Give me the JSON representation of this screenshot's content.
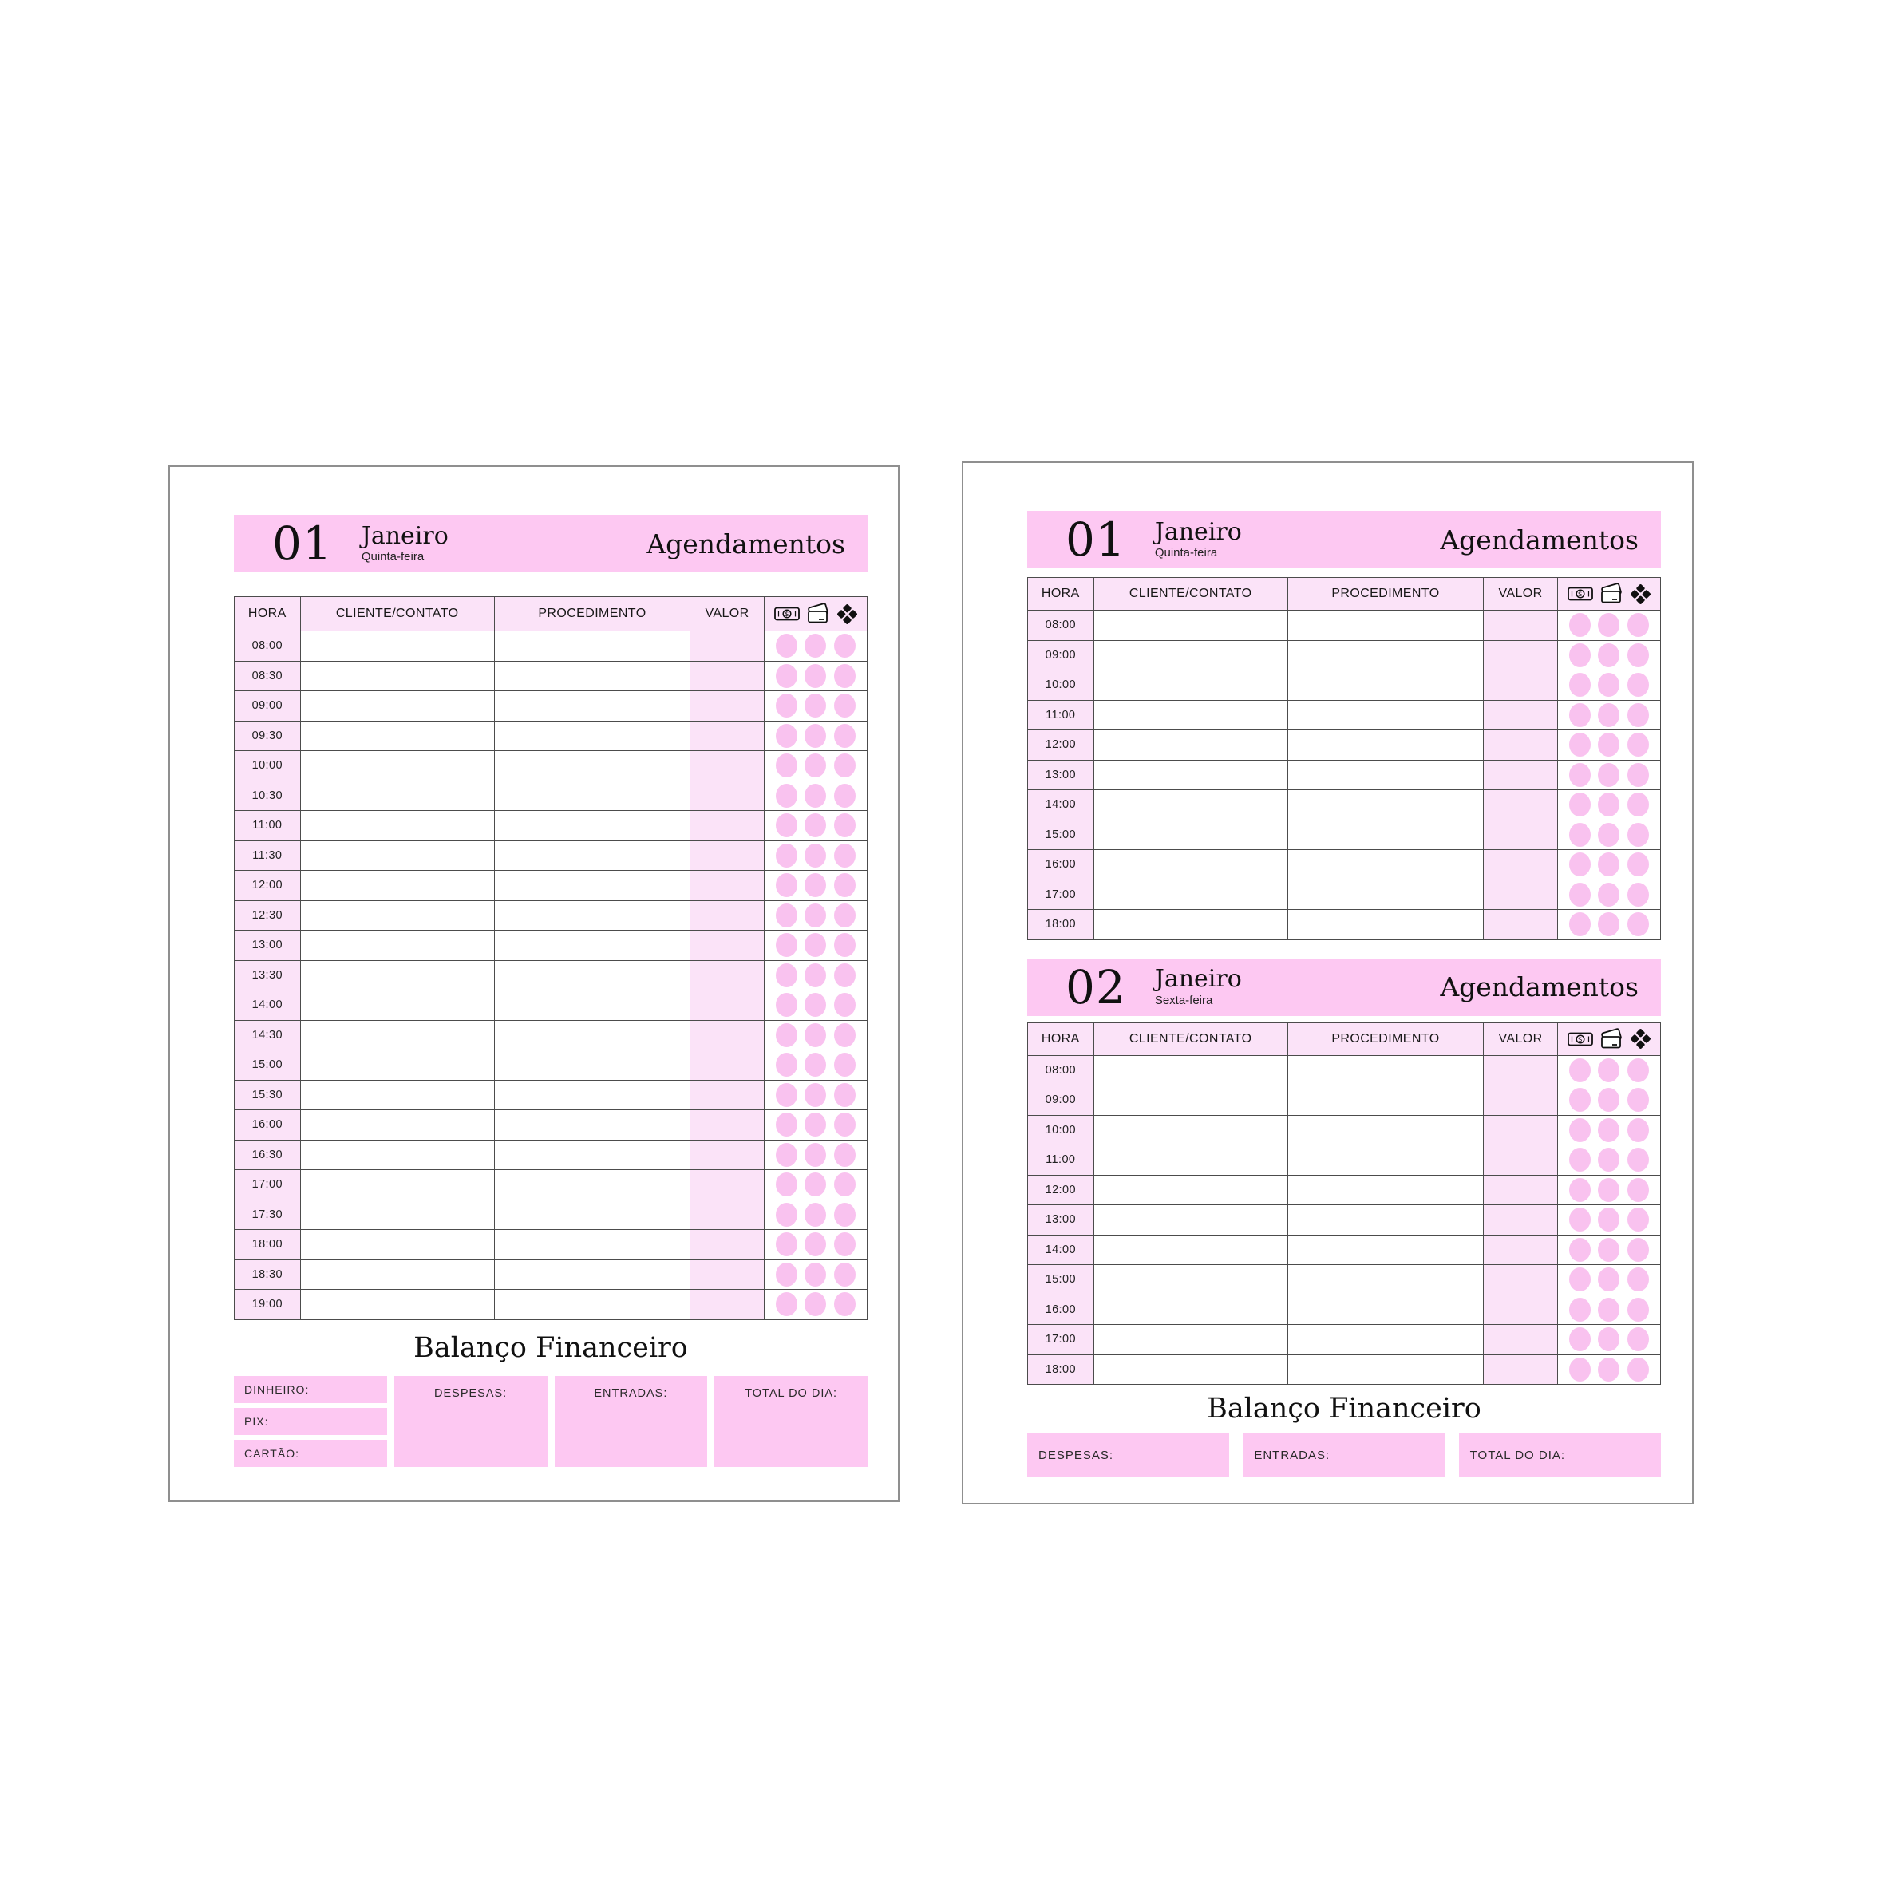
{
  "colors": {
    "banner_pink": "#fdc8f2",
    "cell_pink": "#fbe3f8",
    "dot_pink": "#f9c2ef",
    "border": "#4c4c4c"
  },
  "left_page": {
    "banner": {
      "day": "01",
      "month": "Janeiro",
      "weekday": "Quinta-feira",
      "title": "Agendamentos"
    },
    "columns": {
      "hora": "HORA",
      "cliente": "CLIENTE/CONTATO",
      "procedimento": "PROCEDIMENTO",
      "valor": "VALOR"
    },
    "icon_columns": [
      "cash-icon",
      "card-icon",
      "pix-icon"
    ],
    "times": [
      "08:00",
      "08:30",
      "09:00",
      "09:30",
      "10:00",
      "10:30",
      "11:00",
      "11:30",
      "12:00",
      "12:30",
      "13:00",
      "13:30",
      "14:00",
      "14:30",
      "15:00",
      "15:30",
      "16:00",
      "16:30",
      "17:00",
      "17:30",
      "18:00",
      "18:30",
      "19:00"
    ],
    "finance": {
      "title": "Balanço Financeiro",
      "dinheiro": "DINHEIRO:",
      "pix": "PIX:",
      "cartao": "CARTÃO:",
      "despesas": "DESPESAS:",
      "entradas": "ENTRADAS:",
      "total": "TOTAL DO DIA:"
    }
  },
  "right_page": {
    "section1": {
      "banner": {
        "day": "01",
        "month": "Janeiro",
        "weekday": "Quinta-feira",
        "title": "Agendamentos"
      },
      "columns": {
        "hora": "HORA",
        "cliente": "CLIENTE/CONTATO",
        "procedimento": "PROCEDIMENTO",
        "valor": "VALOR"
      },
      "icon_columns": [
        "cash-icon",
        "card-icon",
        "pix-icon"
      ],
      "times": [
        "08:00",
        "09:00",
        "10:00",
        "11:00",
        "12:00",
        "13:00",
        "14:00",
        "15:00",
        "16:00",
        "17:00",
        "18:00"
      ]
    },
    "section2": {
      "banner": {
        "day": "02",
        "month": "Janeiro",
        "weekday": "Sexta-feira",
        "title": "Agendamentos"
      },
      "columns": {
        "hora": "HORA",
        "cliente": "CLIENTE/CONTATO",
        "procedimento": "PROCEDIMENTO",
        "valor": "VALOR"
      },
      "icon_columns": [
        "cash-icon",
        "card-icon",
        "pix-icon"
      ],
      "times": [
        "08:00",
        "09:00",
        "10:00",
        "11:00",
        "12:00",
        "13:00",
        "14:00",
        "15:00",
        "16:00",
        "17:00",
        "18:00"
      ]
    },
    "finance": {
      "title": "Balanço Financeiro",
      "despesas": "DESPESAS:",
      "entradas": "ENTRADAS:",
      "total": "TOTAL DO DIA:"
    }
  }
}
